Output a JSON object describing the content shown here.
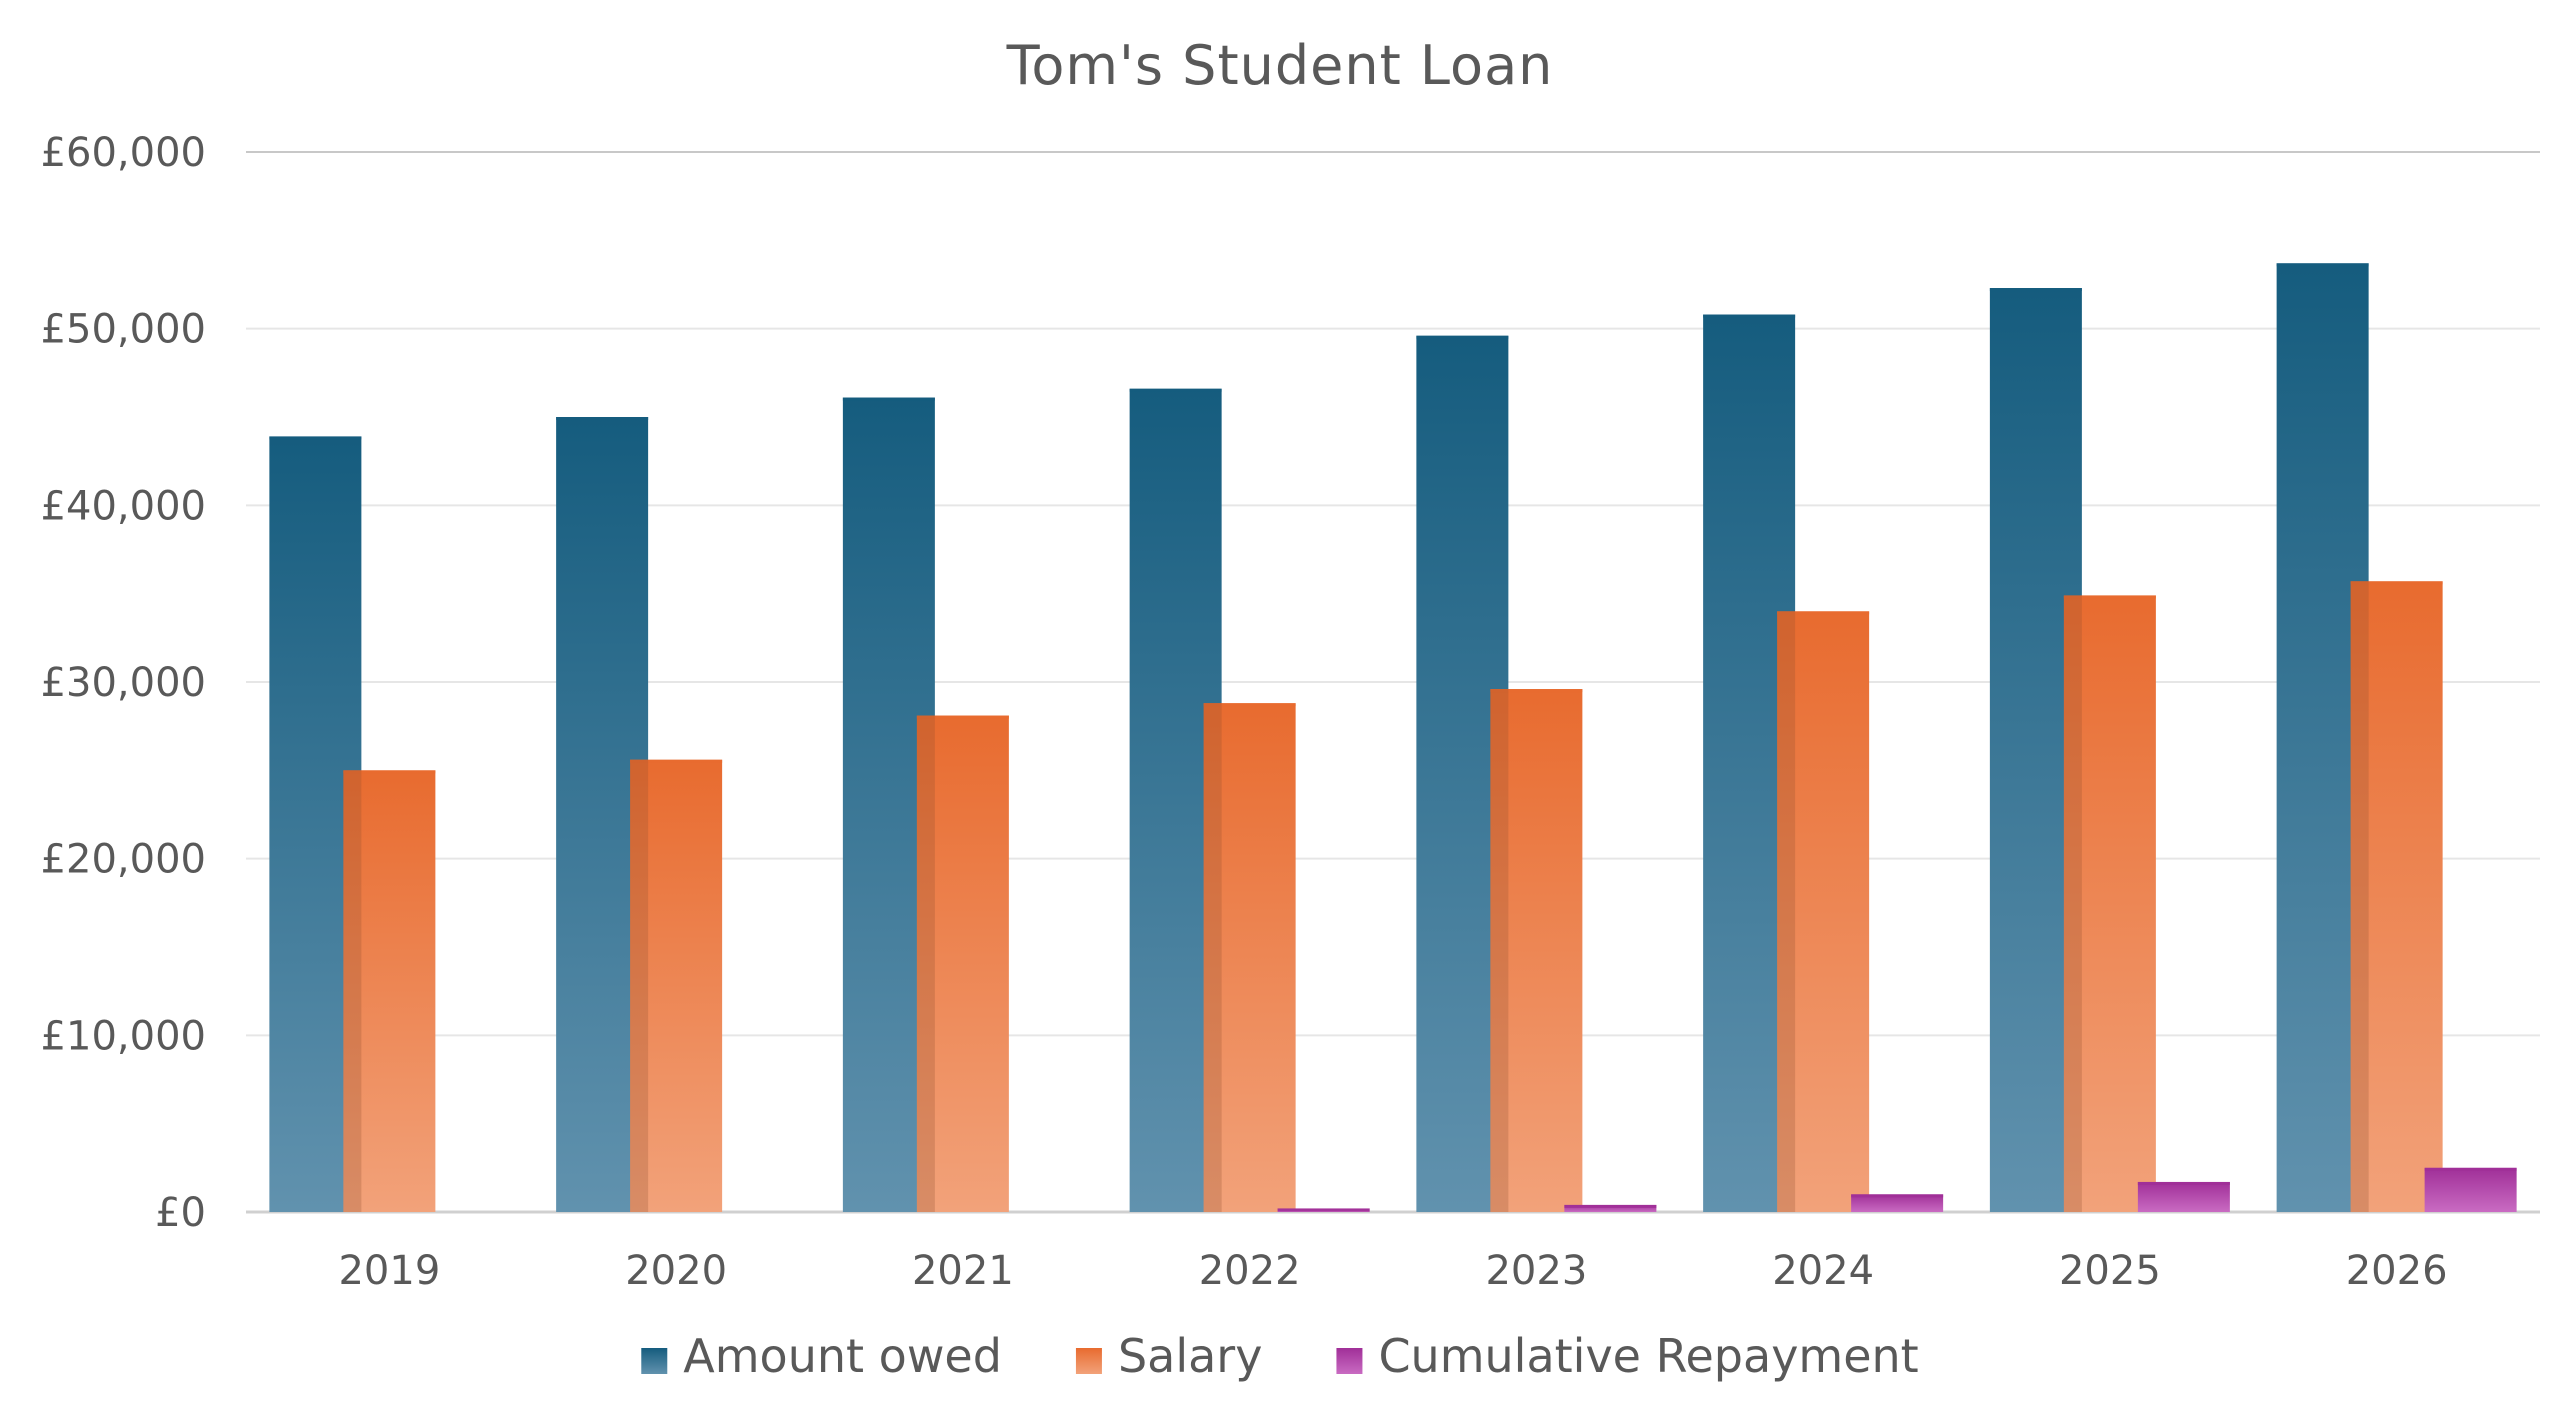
{
  "chart_data": {
    "type": "bar",
    "title": "Tom's Student Loan",
    "xlabel": "",
    "ylabel": "",
    "categories": [
      "2019",
      "2020",
      "2021",
      "2022",
      "2023",
      "2024",
      "2025",
      "2026"
    ],
    "series": [
      {
        "name": "Amount owed",
        "values": [
          43900,
          45000,
          46100,
          46600,
          49600,
          50800,
          52300,
          53700
        ],
        "color_top": "#155c7e",
        "color_bottom": "#6192ae"
      },
      {
        "name": "Salary",
        "values": [
          25000,
          25600,
          28100,
          28800,
          29600,
          34000,
          34900,
          35700
        ],
        "color_top": "#e86b2f",
        "color_bottom": "#f2a27a"
      },
      {
        "name": "Cumulative Repayment",
        "values": [
          0,
          0,
          0,
          200,
          400,
          1000,
          1700,
          2500
        ],
        "color_top": "#a02f98",
        "color_bottom": "#c96bc2"
      }
    ],
    "ylim": [
      0,
      60000
    ],
    "yticks": [
      0,
      10000,
      20000,
      30000,
      40000,
      50000,
      60000
    ],
    "ytick_labels": [
      "£0",
      "£10,000",
      "£20,000",
      "£30,000",
      "£40,000",
      "£50,000",
      "£60,000"
    ],
    "grid": true,
    "legend_position": "bottom"
  }
}
